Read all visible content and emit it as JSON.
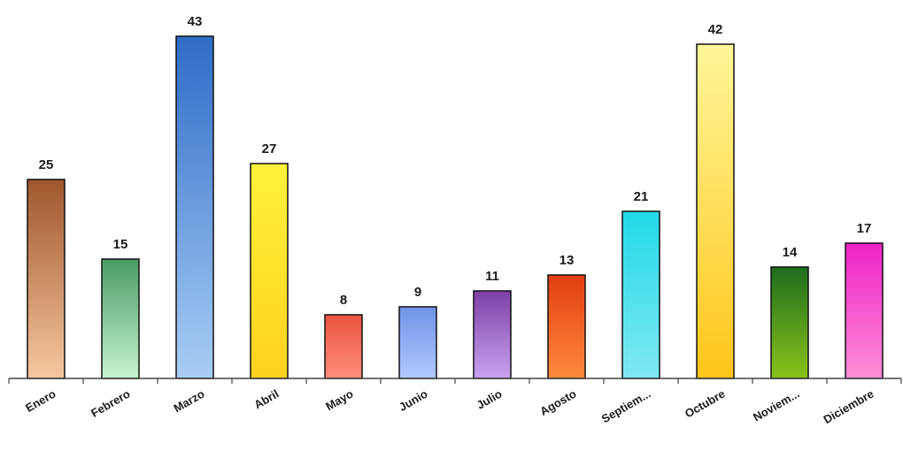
{
  "chart_data": {
    "type": "bar",
    "title": "",
    "xlabel": "",
    "ylabel": "",
    "categories": [
      "Enero",
      "Febrero",
      "Marzo",
      "Abril",
      "Mayo",
      "Junio",
      "Julio",
      "Agosto",
      "Septiem...",
      "Octubre",
      "Noviem...",
      "Diciembre"
    ],
    "values": [
      25,
      15,
      43,
      27,
      8,
      9,
      11,
      13,
      21,
      42,
      14,
      17
    ],
    "ylim": [
      0,
      47
    ],
    "grid": false,
    "legend": "none",
    "data_labels": true,
    "bar_gradients": [
      [
        "#f6c79f",
        "#a0562b"
      ],
      [
        "#c7f4cf",
        "#4a9b63"
      ],
      [
        "#a9cdf5",
        "#2e6cc7"
      ],
      [
        "#ffd21f",
        "#fff23a"
      ],
      [
        "#ff8f7a",
        "#e9533f"
      ],
      [
        "#b2c9ff",
        "#6f93e8"
      ],
      [
        "#c8a4f0",
        "#7e3fa7"
      ],
      [
        "#ff8a3c",
        "#e23e10"
      ],
      [
        "#7fe9f2",
        "#22d9e8"
      ],
      [
        "#ffc61a",
        "#fff69a"
      ],
      [
        "#8ac21b",
        "#1d6d1d"
      ],
      [
        "#ff8fd6",
        "#ee22c8"
      ]
    ]
  }
}
